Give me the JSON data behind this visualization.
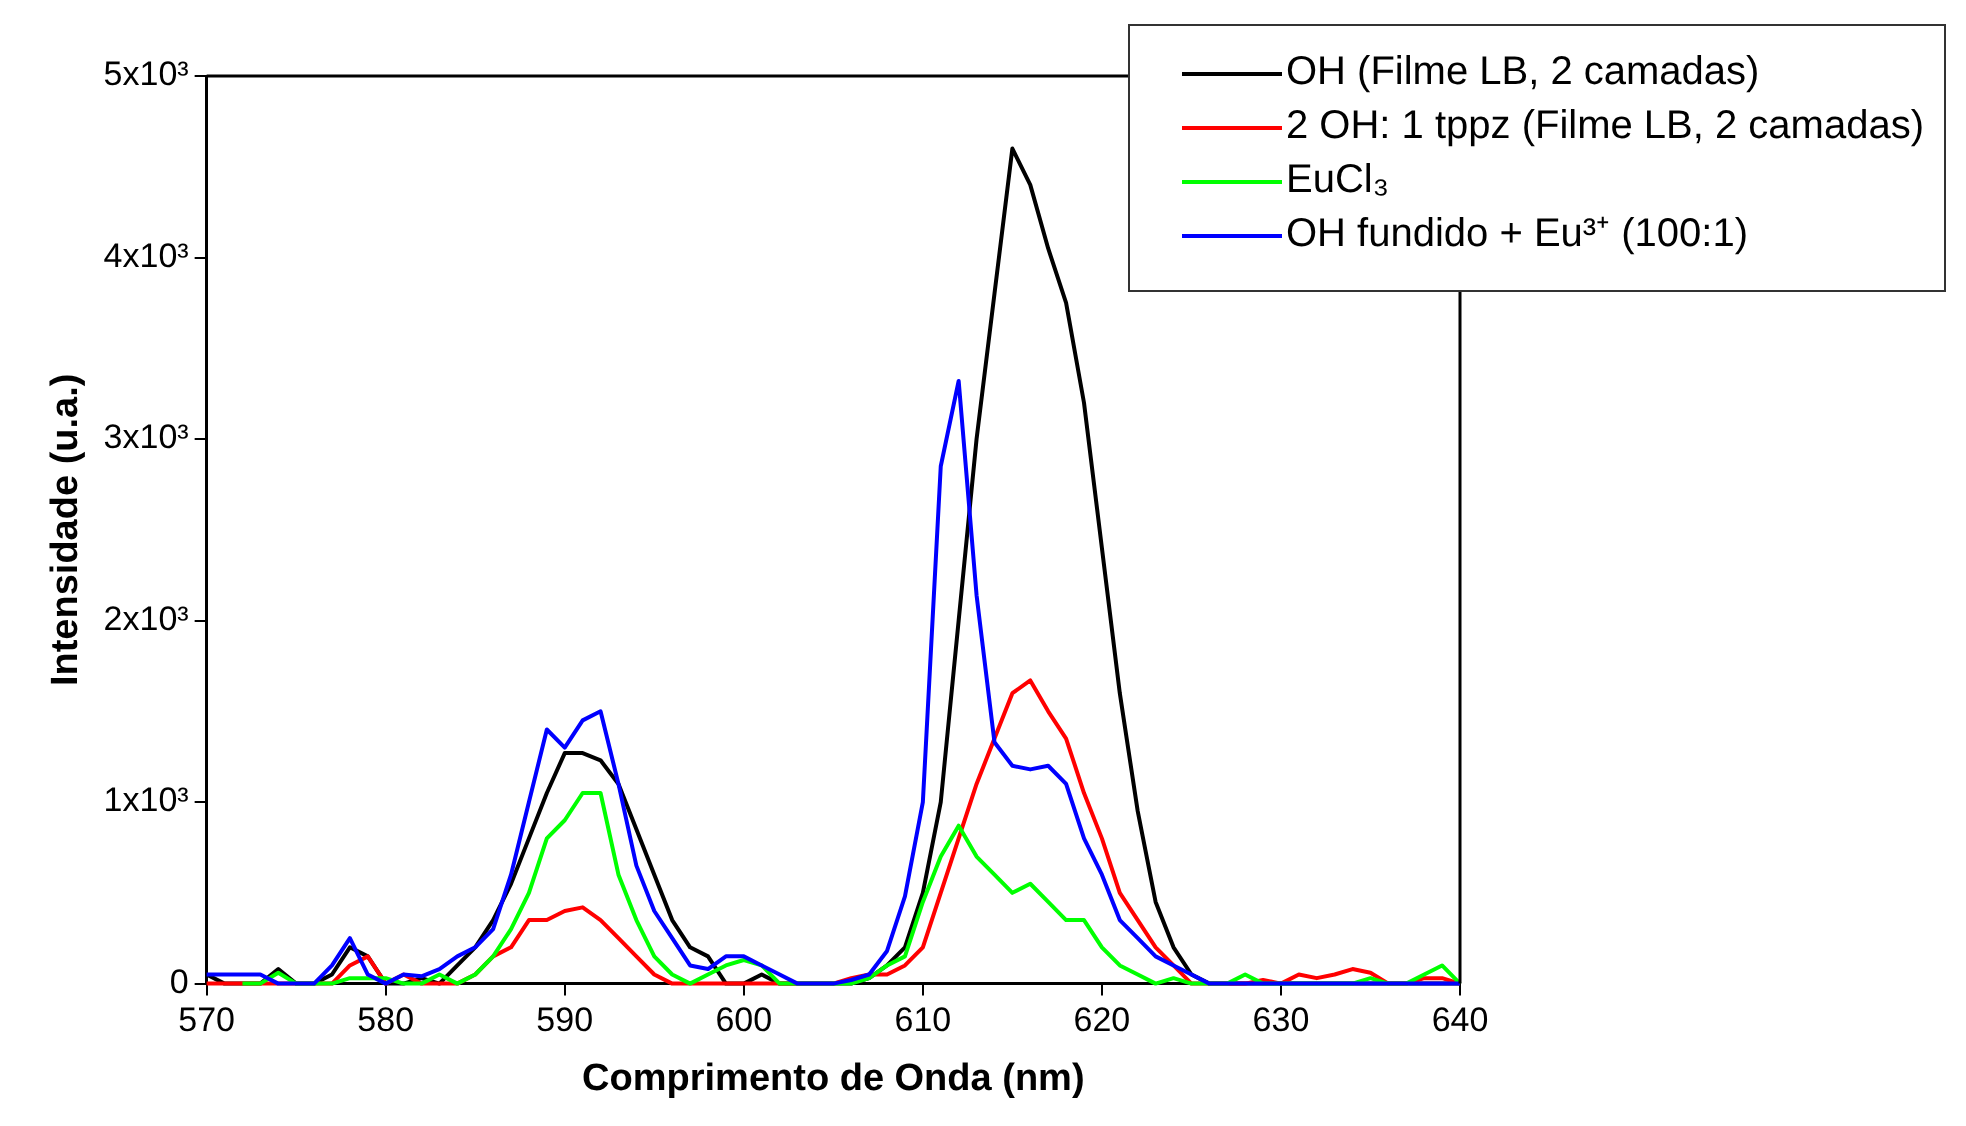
{
  "chart_data": {
    "type": "line",
    "xlabel": "Comprimento de Onda (nm)",
    "ylabel": "Intensidade (u.a.)",
    "x": [
      570,
      571,
      572,
      573,
      574,
      575,
      576,
      577,
      578,
      579,
      580,
      581,
      582,
      583,
      584,
      585,
      586,
      587,
      588,
      589,
      590,
      591,
      592,
      593,
      594,
      595,
      596,
      597,
      598,
      599,
      600,
      601,
      602,
      603,
      604,
      605,
      606,
      607,
      608,
      609,
      610,
      611,
      612,
      613,
      614,
      615,
      616,
      617,
      618,
      619,
      620,
      621,
      622,
      623,
      624,
      625,
      626,
      627,
      628,
      629,
      630,
      631,
      632,
      633,
      634,
      635,
      636,
      637,
      638,
      639,
      640
    ],
    "series": [
      {
        "name": "OH (Filme LB, 2 camadas)",
        "color": "#000000",
        "values": [
          50,
          0,
          0,
          0,
          80,
          0,
          0,
          50,
          200,
          150,
          0,
          0,
          30,
          0,
          100,
          200,
          350,
          550,
          800,
          1050,
          1270,
          1270,
          1230,
          1100,
          850,
          600,
          350,
          200,
          150,
          0,
          0,
          50,
          0,
          0,
          0,
          0,
          0,
          30,
          100,
          200,
          500,
          1000,
          2000,
          3000,
          3800,
          4600,
          4400,
          4050,
          3750,
          3200,
          2400,
          1600,
          950,
          450,
          200,
          50,
          0,
          0,
          0,
          0,
          0,
          0,
          0,
          0,
          0,
          0,
          0,
          0,
          0,
          0,
          0
        ]
      },
      {
        "name": "2 OH: 1 tppz (Filme LB, 2 camadas)",
        "color": "#ff0000",
        "values": [
          0,
          0,
          0,
          0,
          0,
          0,
          0,
          0,
          100,
          150,
          0,
          50,
          0,
          0,
          0,
          50,
          150,
          200,
          350,
          350,
          400,
          420,
          350,
          250,
          150,
          50,
          0,
          0,
          0,
          0,
          0,
          0,
          0,
          0,
          0,
          0,
          30,
          50,
          50,
          100,
          200,
          500,
          800,
          1100,
          1350,
          1600,
          1670,
          1500,
          1350,
          1050,
          800,
          500,
          350,
          200,
          100,
          0,
          0,
          0,
          0,
          20,
          0,
          50,
          30,
          50,
          80,
          60,
          0,
          0,
          30,
          30,
          0
        ]
      },
      {
        "name": "EuCl₃",
        "color": "#00ff00",
        "values": [
          null,
          null,
          0,
          0,
          60,
          0,
          0,
          0,
          30,
          30,
          30,
          0,
          0,
          50,
          0,
          50,
          150,
          300,
          500,
          800,
          900,
          1050,
          1050,
          600,
          350,
          150,
          50,
          0,
          50,
          100,
          130,
          100,
          0,
          0,
          0,
          0,
          0,
          30,
          100,
          150,
          450,
          700,
          870,
          700,
          600,
          500,
          550,
          450,
          350,
          350,
          200,
          100,
          50,
          0,
          30,
          0,
          0,
          0,
          50,
          0,
          0,
          0,
          0,
          0,
          0,
          30,
          0,
          0,
          50,
          100,
          0
        ]
      },
      {
        "name": "OH fundido + Eu³⁺ (100:1)",
        "color": "#0000ff",
        "values": [
          50,
          50,
          50,
          50,
          0,
          0,
          0,
          100,
          250,
          50,
          0,
          50,
          40,
          80,
          150,
          200,
          300,
          600,
          1000,
          1400,
          1300,
          1450,
          1500,
          1100,
          650,
          400,
          250,
          100,
          80,
          150,
          150,
          100,
          50,
          0,
          0,
          0,
          20,
          50,
          180,
          480,
          1000,
          2850,
          3320,
          2140,
          1330,
          1200,
          1180,
          1200,
          1100,
          800,
          600,
          350,
          250,
          150,
          100,
          50,
          0,
          0,
          0,
          0,
          0,
          0,
          0,
          0,
          0,
          0,
          0,
          0,
          0,
          0,
          0
        ]
      }
    ],
    "xlim": [
      570,
      640
    ],
    "xticks": [
      570,
      580,
      590,
      600,
      610,
      620,
      630,
      640
    ],
    "ylim": [
      0,
      5000
    ],
    "yticks": [
      0,
      {
        "value": 1000,
        "label": "1x10³"
      },
      {
        "value": 2000,
        "label": "2x10³"
      },
      {
        "value": 3000,
        "label": "3x10³"
      },
      {
        "value": 4000,
        "label": "4x10³"
      },
      {
        "value": 5000,
        "label": "5x10³"
      }
    ],
    "grid": false,
    "legend": "top right",
    "marker": "none",
    "line_style": "solid"
  }
}
